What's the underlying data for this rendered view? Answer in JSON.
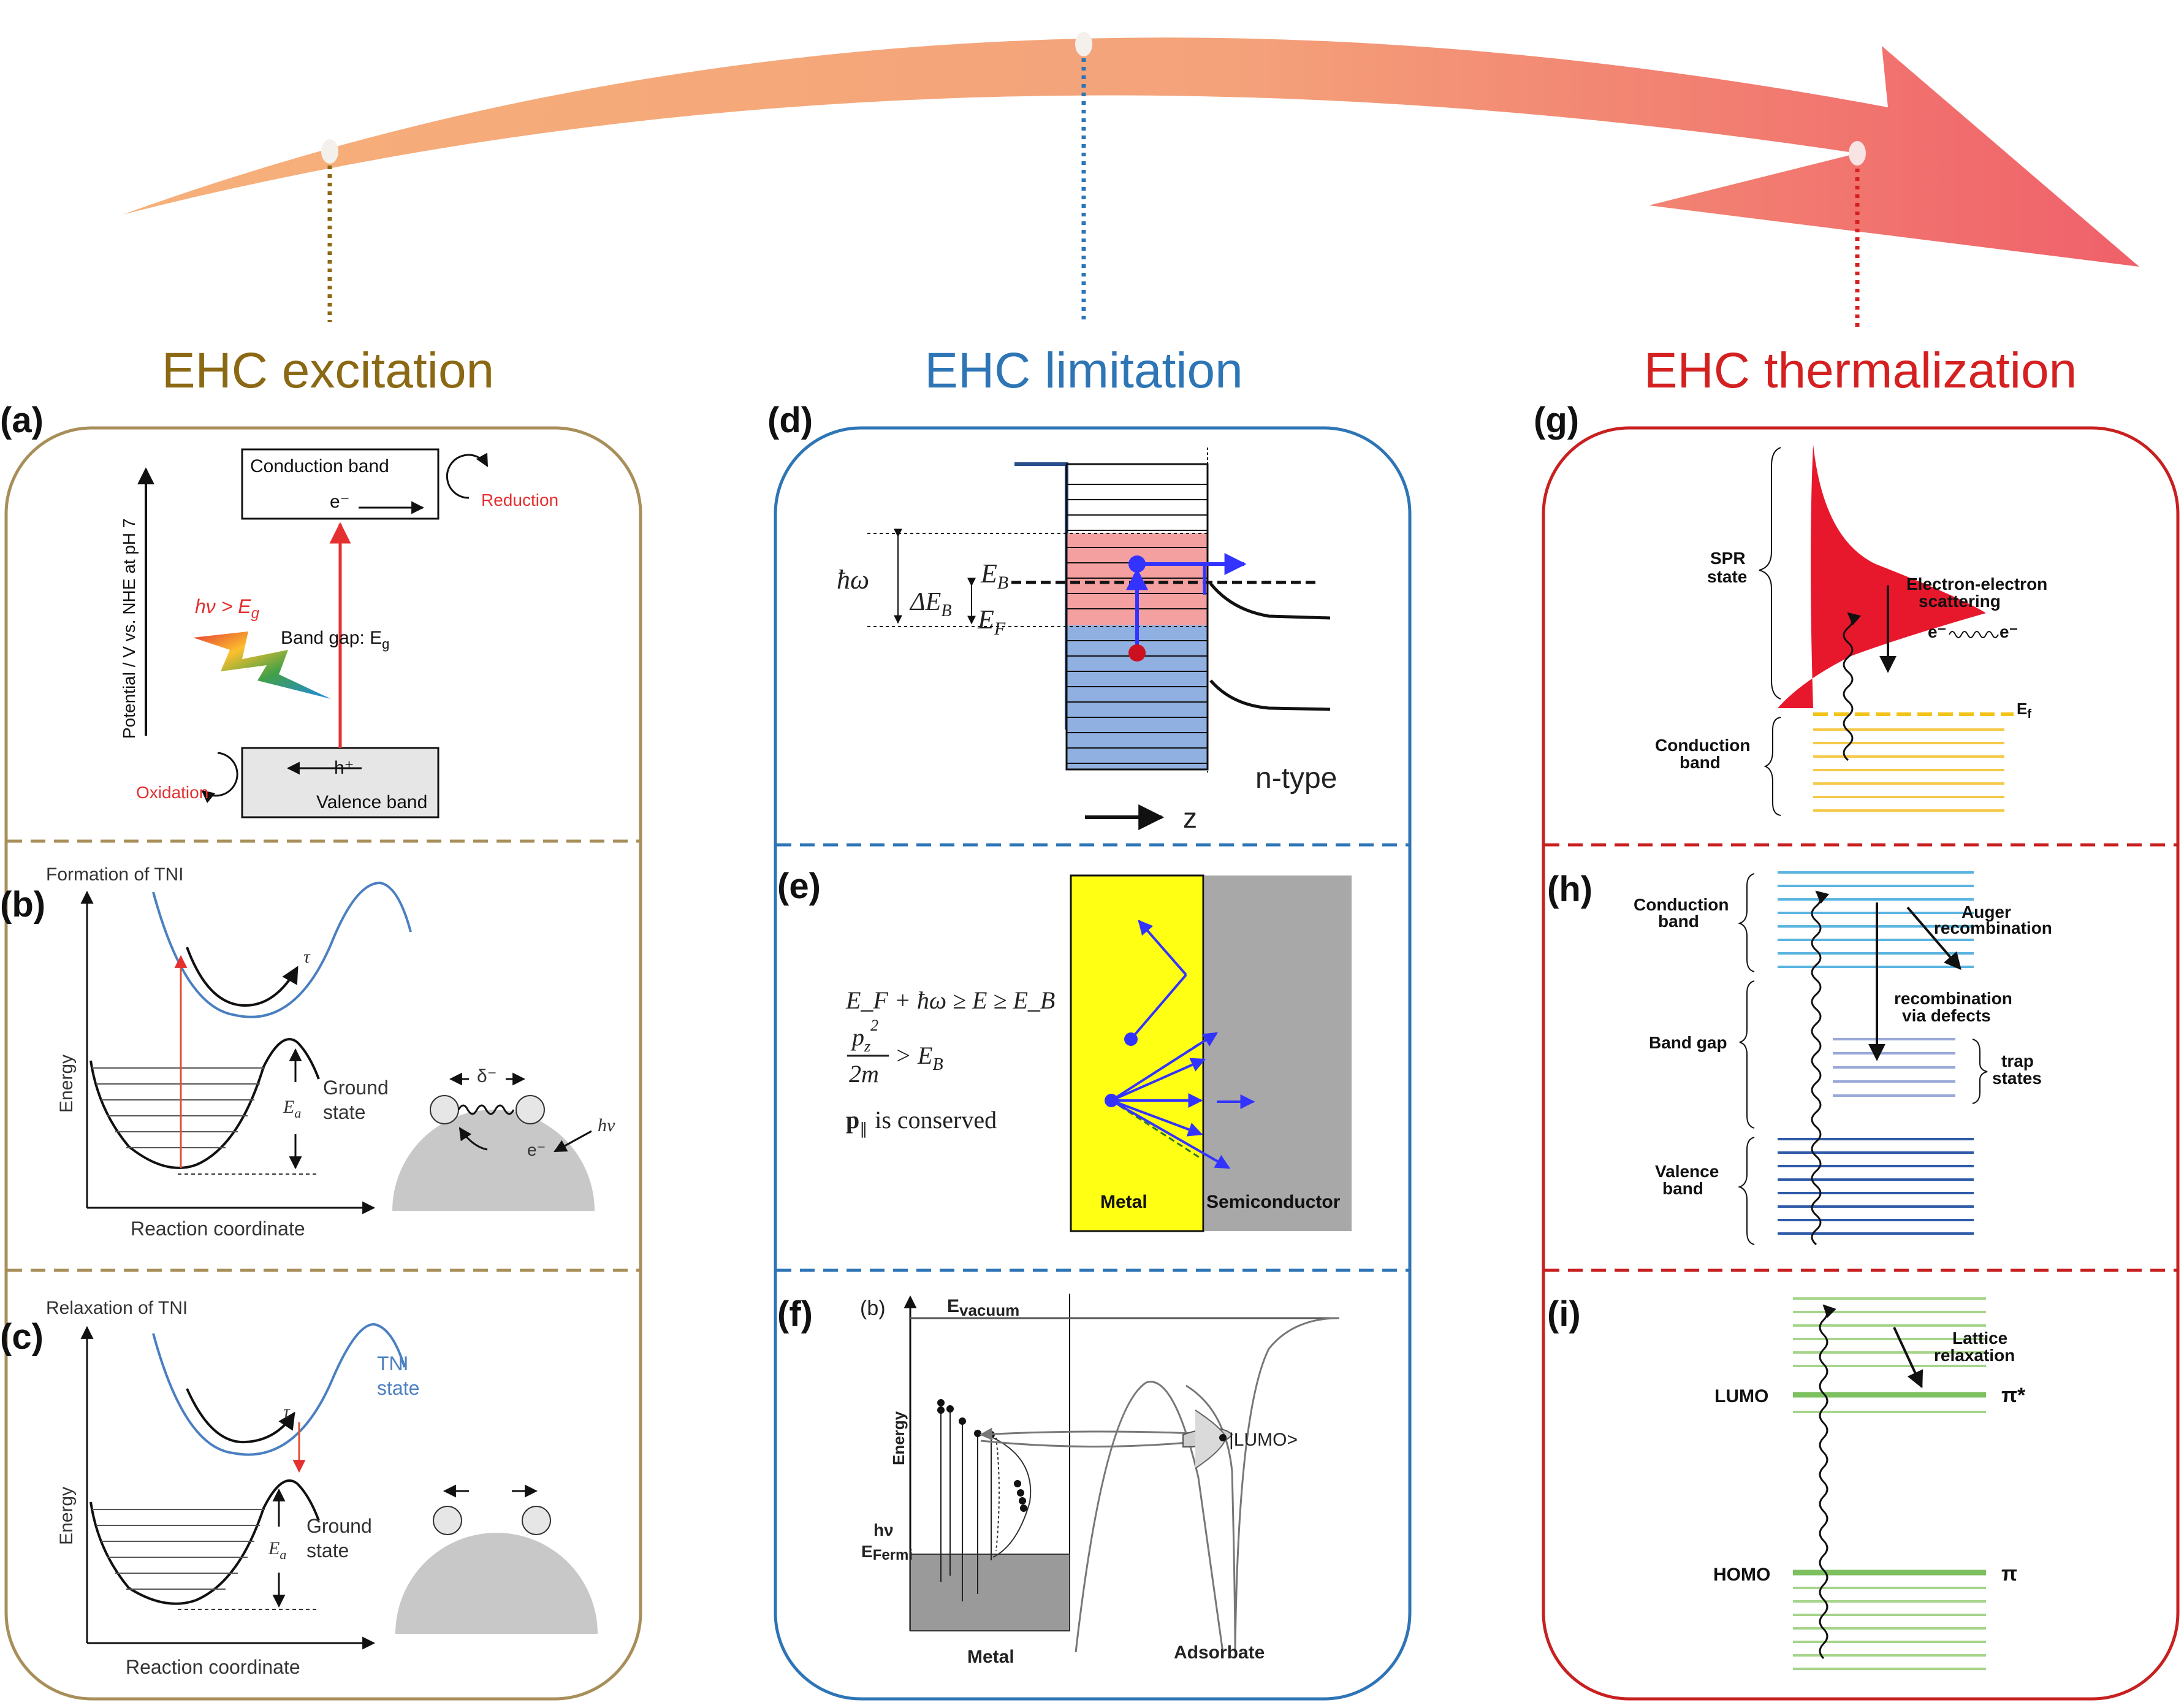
{
  "stages": [
    {
      "id": "excitation",
      "title": "EHC excitation",
      "color": "#8b6914"
    },
    {
      "id": "limitation",
      "title": "EHC limitation",
      "color": "#2e75b6"
    },
    {
      "id": "thermalization",
      "title": "EHC thermalization",
      "color": "#d42020"
    }
  ],
  "panel_letters": [
    "(a)",
    "(b)",
    "(c)",
    "(d)",
    "(e)",
    "(f)",
    "(g)",
    "(h)",
    "(i)"
  ],
  "a": {
    "conduction": "Conduction band",
    "valence": "Valence band",
    "electron": "e⁻",
    "hole": "h⁺",
    "reduction": "Reduction",
    "oxidation": "Oxidation",
    "photon": "hν > E",
    "photon_sub": "g",
    "bandgap": "Band gap: E",
    "bandgap_sub": "g",
    "yaxis": "Potential / V vs. NHE at pH 7"
  },
  "b": {
    "heading": "Formation of TNI",
    "ground": [
      "Ground",
      "state"
    ],
    "ea": "E",
    "ea_sub": "a",
    "tau": "τ",
    "delta": "δ⁻",
    "electron": "e⁻",
    "hv": "hν",
    "yaxis": "Energy",
    "xaxis": "Reaction coordinate"
  },
  "c": {
    "heading": "Relaxation of TNI",
    "tni": [
      "TNI",
      "state"
    ],
    "ground": [
      "Ground",
      "state"
    ],
    "ea": "E",
    "ea_sub": "a",
    "tau": "τ",
    "yaxis": "Energy",
    "xaxis": "Reaction coordinate"
  },
  "d": {
    "hw": "ħω",
    "eb": "E",
    "eb_sub": "B",
    "deb": "ΔE",
    "deb_sub": "B",
    "ef": "E",
    "ef_sub": "F",
    "ntype": "n-type",
    "z": "z"
  },
  "e": {
    "eq1": "E_F + ħω ≥ E ≥ E_B",
    "eq2_num": "p",
    "eq2_rest": "> E",
    "eq2_den": "2m",
    "eq3": "p",
    "eq3_rest": "is conserved",
    "metal": "Metal",
    "semiconductor": "Semiconductor"
  },
  "f": {
    "b": "(b)",
    "evac": "E",
    "evac_sub": "vacuum",
    "energy": "Energy",
    "efermi": "E",
    "efermi_sub": "Fermi",
    "hv": "hν",
    "lumo": "|LUMO>",
    "metal": "Metal",
    "adsorbate": "Adsorbate"
  },
  "g": {
    "spr": [
      "SPR",
      "state"
    ],
    "conduction": [
      "Conduction",
      "band"
    ],
    "ee": [
      "Electron-electron",
      "scattering"
    ],
    "eminus": "e⁻",
    "ef": "E",
    "ef_sub": "f"
  },
  "h": {
    "conduction": [
      "Conduction",
      "band"
    ],
    "bandgap": "Band gap",
    "valence": [
      "Valence",
      "band"
    ],
    "auger": [
      "Auger",
      "recombination"
    ],
    "defects": [
      "recombination",
      "via defects"
    ],
    "trap": [
      "trap",
      "states"
    ]
  },
  "i": {
    "lattice": [
      "Lattice",
      "relaxation"
    ],
    "lumo": "LUMO",
    "homo": "HOMO",
    "pistar": "π*",
    "pi": "π"
  }
}
